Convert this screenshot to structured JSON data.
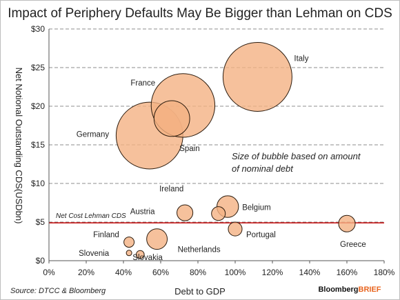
{
  "chart_data": {
    "type": "bubble",
    "title": "Impact of Periphery Defaults May Be Bigger than Lehman on CDS",
    "xlabel": "Debt to GDP",
    "ylabel": "Net Notional Outstanding CDS(USDbn)",
    "xlim": [
      0,
      180
    ],
    "ylim": [
      0,
      30
    ],
    "x_ticks": [
      "0%",
      "20%",
      "40%",
      "60%",
      "80%",
      "100%",
      "120%",
      "140%",
      "160%",
      "180%"
    ],
    "y_ticks": [
      "$0",
      "$5",
      "$10",
      "$15",
      "$20",
      "$25",
      "$30"
    ],
    "grid": "horizontal-dashed",
    "bubble_color": "#f4b183",
    "bubble_edge": "#2a1a0c",
    "size_note": "Size of bubble based on amount of nominal debt",
    "reference_line": {
      "label": "Net Cost Lehman CDS",
      "value": 4.9,
      "color": "#c00000"
    },
    "points": [
      {
        "name": "Italy",
        "x": 112,
        "y": 23.8,
        "size": 2.24
      },
      {
        "name": "France",
        "x": 72,
        "y": 20.1,
        "size": 1.91
      },
      {
        "name": "Spain",
        "x": 66,
        "y": 18.4,
        "size": 0.6
      },
      {
        "name": "Germany",
        "x": 54,
        "y": 16.2,
        "size": 2.1
      },
      {
        "name": "Ireland",
        "x": 73,
        "y": 6.2,
        "size": 0.12
      },
      {
        "name": "Austria",
        "x": 91,
        "y": 6.1,
        "size": 0.09
      },
      {
        "name": "Belgium",
        "x": 96,
        "y": 7.0,
        "size": 0.22
      },
      {
        "name": "Portugal",
        "x": 100,
        "y": 4.1,
        "size": 0.09
      },
      {
        "name": "Netherlands",
        "x": 58,
        "y": 2.8,
        "size": 0.2
      },
      {
        "name": "Finland",
        "x": 43,
        "y": 2.4,
        "size": 0.05
      },
      {
        "name": "Slovakia",
        "x": 49,
        "y": 0.8,
        "size": 0.03
      },
      {
        "name": "Slovenia",
        "x": 43,
        "y": 1.0,
        "size": 0.01
      },
      {
        "name": "Greece",
        "x": 160,
        "y": 4.8,
        "size": 0.13
      }
    ],
    "source": "Source: DTCC & Bloomberg",
    "brand": {
      "part1": "Bloomberg",
      "part2": "BRIEF"
    }
  }
}
